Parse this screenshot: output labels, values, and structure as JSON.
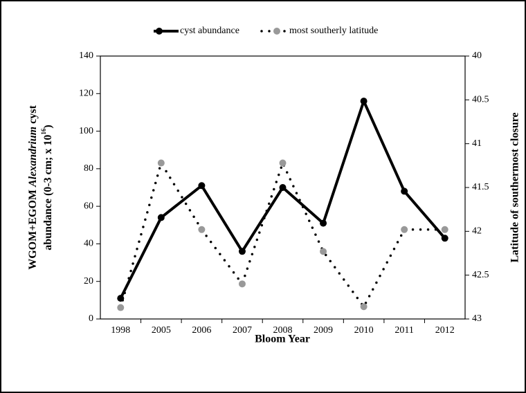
{
  "chart_data": {
    "type": "line",
    "categories": [
      "1998",
      "2005",
      "2006",
      "2007",
      "2008",
      "2009",
      "2010",
      "2011",
      "2012"
    ],
    "series": [
      {
        "name": "cyst abundance",
        "color": "#000000",
        "style": "solid",
        "marker_color": "#000000",
        "values": [
          11,
          54,
          71,
          36,
          70,
          51,
          116,
          68,
          43
        ]
      },
      {
        "name": "most southerly latitude",
        "color": "#000000",
        "style": "dotted",
        "marker_color": "#999999",
        "axis": "y2",
        "values": [
          42.87,
          41.22,
          41.98,
          42.6,
          41.22,
          42.23,
          42.86,
          41.98,
          41.98
        ]
      }
    ],
    "xlabel": "Bloom Year",
    "ylabel": [
      "WGOM+EGOM ",
      "Alexandrium",
      " cyst",
      "abundance (0-3 cm; x 10",
      "16",
      ")"
    ],
    "y2label": "Latitude of southermost closure",
    "ylim": [
      0,
      140
    ],
    "yticks": [
      0,
      20,
      40,
      60,
      80,
      100,
      120,
      140
    ],
    "y2lim": [
      43,
      40
    ],
    "y2ticks": [
      40,
      40.5,
      41,
      41.5,
      42,
      42.5,
      43
    ],
    "legend": "top",
    "grid": false
  }
}
